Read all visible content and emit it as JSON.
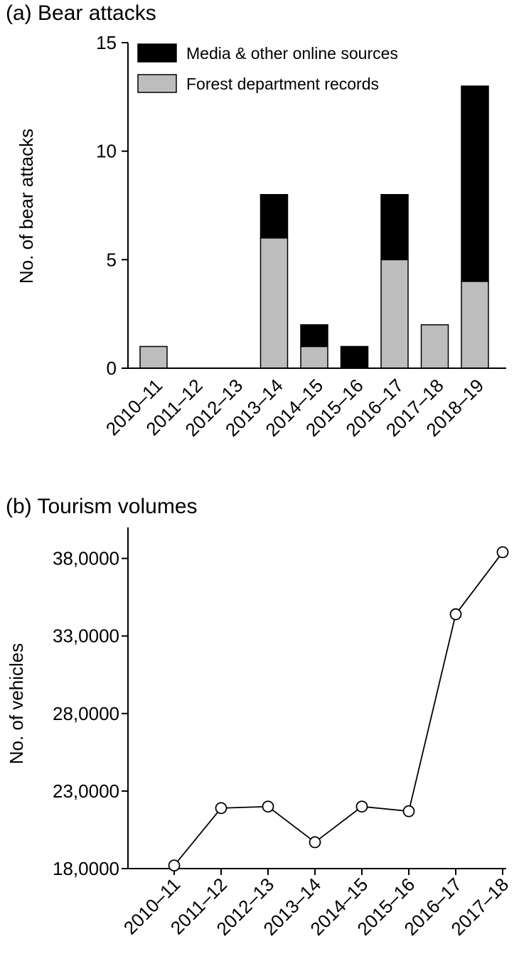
{
  "chart_data": [
    {
      "type": "bar",
      "stacked": true,
      "title": "(a) Bear attacks",
      "xlabel": "",
      "ylabel": "No. of bear attacks",
      "ylim": [
        0,
        15
      ],
      "yticks": [
        0,
        5,
        10,
        15
      ],
      "categories": [
        "2010–11",
        "2011–12",
        "2012–13",
        "2013–14",
        "2014–15",
        "2015–16",
        "2016–17",
        "2017–18",
        "2018–19"
      ],
      "series": [
        {
          "name": "Forest department records",
          "color": "#bdbdbd",
          "values": [
            1,
            0,
            0,
            6,
            1,
            0,
            5,
            2,
            4
          ]
        },
        {
          "name": "Media & other online sources",
          "color": "#000000",
          "values": [
            0,
            0,
            0,
            2,
            1,
            1,
            3,
            0,
            9
          ]
        }
      ],
      "legend": "top-left",
      "grid": false
    },
    {
      "type": "line",
      "title": "(b) Tourism volumes",
      "xlabel": "",
      "ylabel": "No. of  vehicles",
      "ylim": [
        180000,
        400000
      ],
      "yticks": [
        180000,
        230000,
        280000,
        330000,
        380000
      ],
      "ytick_labels": [
        "18,0000",
        "23,0000",
        "28,0000",
        "33,0000",
        "38,0000"
      ],
      "categories": [
        "2010–11",
        "2011–12",
        "2012–13",
        "2013–14",
        "2014–15",
        "2015–16",
        "2016–17",
        "2017–18"
      ],
      "series": [
        {
          "name": "",
          "values": [
            182000,
            219000,
            220000,
            197000,
            220000,
            217000,
            344000,
            384000
          ]
        }
      ],
      "grid": false
    }
  ]
}
